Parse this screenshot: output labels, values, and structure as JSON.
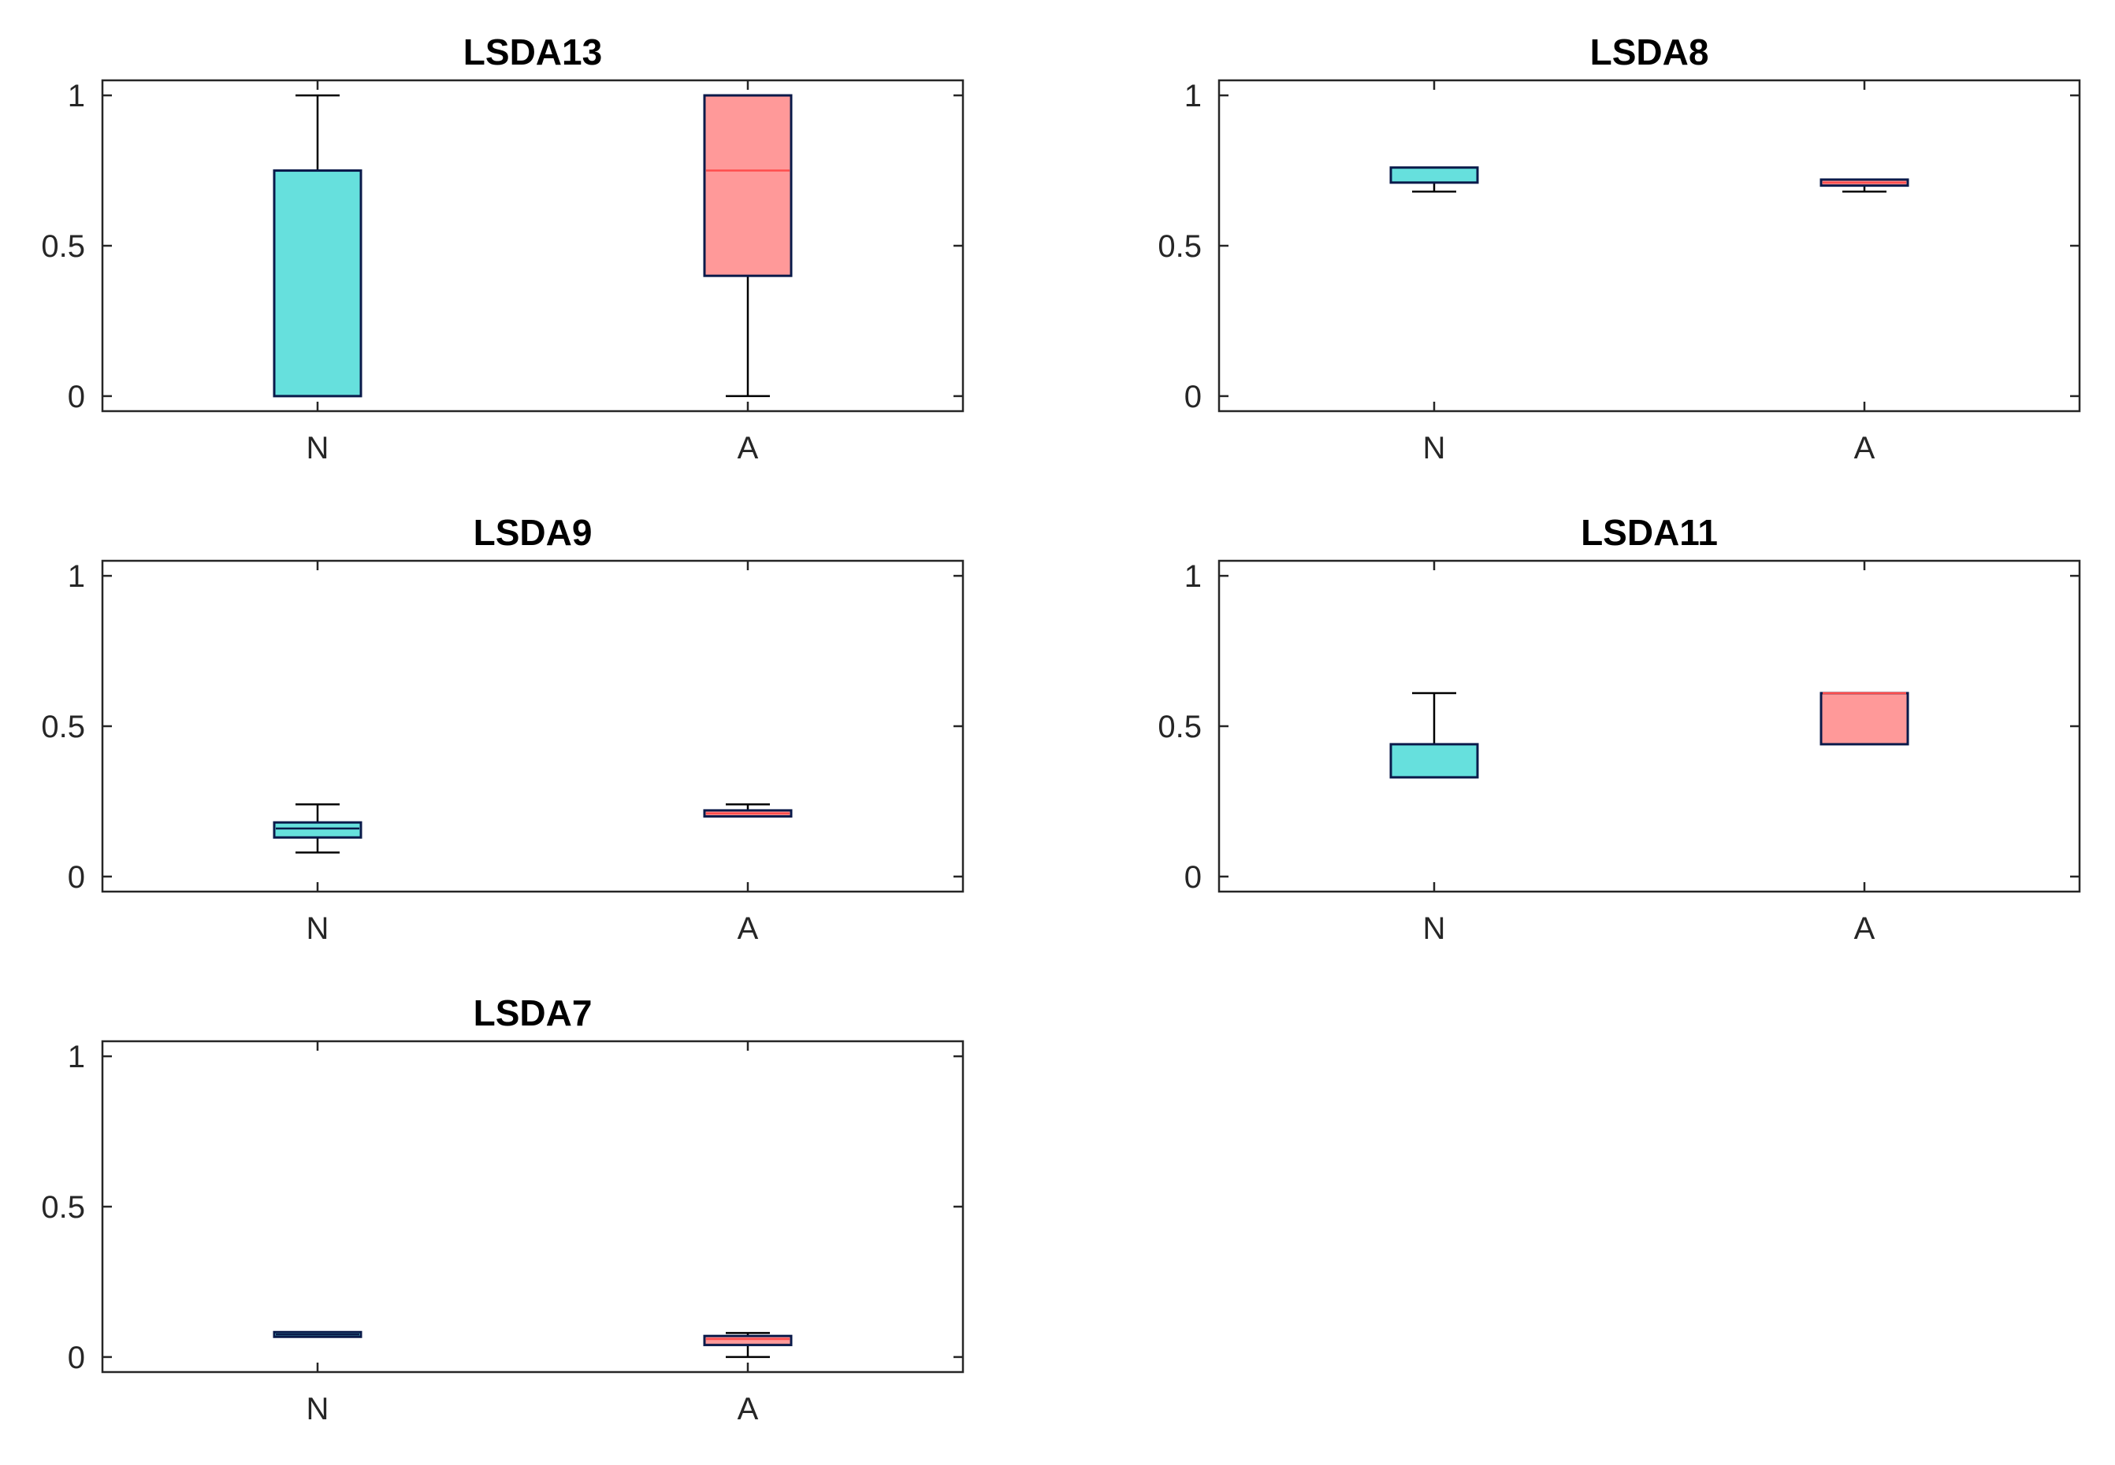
{
  "chart_data": [
    {
      "type": "boxplot",
      "title": "LSDA13",
      "categories": [
        "N",
        "A"
      ],
      "ylim": [
        -0.05,
        1.05
      ],
      "yticks": [
        0,
        0.5,
        1
      ],
      "ytick_labels": [
        "0",
        "0.5",
        "1"
      ],
      "boxes": [
        {
          "category": "N",
          "whisker_low": 0,
          "q1": 0,
          "median": 0.75,
          "q3": 0.75,
          "whisker_high": 1
        },
        {
          "category": "A",
          "whisker_low": 0,
          "q1": 0.4,
          "median": 0.75,
          "q3": 1,
          "whisker_high": 1
        }
      ]
    },
    {
      "type": "boxplot",
      "title": "LSDA8",
      "categories": [
        "N",
        "A"
      ],
      "ylim": [
        -0.05,
        1.05
      ],
      "yticks": [
        0,
        0.5,
        1
      ],
      "ytick_labels": [
        "0",
        "0.5",
        "1"
      ],
      "boxes": [
        {
          "category": "N",
          "whisker_low": 0.68,
          "q1": 0.71,
          "median": 0.76,
          "q3": 0.76,
          "whisker_high": 0.76
        },
        {
          "category": "A",
          "whisker_low": 0.68,
          "q1": 0.7,
          "median": 0.71,
          "q3": 0.72,
          "whisker_high": 0.72
        }
      ]
    },
    {
      "type": "boxplot",
      "title": "LSDA9",
      "categories": [
        "N",
        "A"
      ],
      "ylim": [
        -0.05,
        1.05
      ],
      "yticks": [
        0,
        0.5,
        1
      ],
      "ytick_labels": [
        "0",
        "0.5",
        "1"
      ],
      "boxes": [
        {
          "category": "N",
          "whisker_low": 0.08,
          "q1": 0.13,
          "median": 0.16,
          "q3": 0.18,
          "whisker_high": 0.24
        },
        {
          "category": "A",
          "whisker_low": 0.2,
          "q1": 0.2,
          "median": 0.21,
          "q3": 0.22,
          "whisker_high": 0.24
        }
      ]
    },
    {
      "type": "boxplot",
      "title": "LSDA11",
      "categories": [
        "N",
        "A"
      ],
      "ylim": [
        -0.05,
        1.05
      ],
      "yticks": [
        0,
        0.5,
        1
      ],
      "ytick_labels": [
        "0",
        "0.5",
        "1"
      ],
      "boxes": [
        {
          "category": "N",
          "whisker_low": 0.33,
          "q1": 0.33,
          "median": 0.33,
          "q3": 0.44,
          "whisker_high": 0.61
        },
        {
          "category": "A",
          "whisker_low": 0.44,
          "q1": 0.44,
          "median": 0.61,
          "q3": 0.61,
          "whisker_high": 0.61
        }
      ]
    },
    {
      "type": "boxplot",
      "title": "LSDA7",
      "categories": [
        "N",
        "A"
      ],
      "ylim": [
        -0.05,
        1.05
      ],
      "yticks": [
        0,
        0.5,
        1
      ],
      "ytick_labels": [
        "0",
        "0.5",
        "1"
      ],
      "boxes": [
        {
          "category": "N",
          "whisker_low": 0.07,
          "q1": 0.07,
          "median": 0.075,
          "q3": 0.08,
          "whisker_high": 0.08
        },
        {
          "category": "A",
          "whisker_low": 0,
          "q1": 0.04,
          "median": 0.06,
          "q3": 0.07,
          "whisker_high": 0.08
        }
      ]
    }
  ],
  "colors": {
    "N": {
      "fill": "#66e0dd",
      "edge": "#0a1a4a",
      "median": "#0a1a4a"
    },
    "A": {
      "fill": "#ff9999",
      "edge": "#0a1a4a",
      "median": "#ff4d4d"
    },
    "axis": "#262626",
    "text": "#000000",
    "background": "#ffffff"
  }
}
